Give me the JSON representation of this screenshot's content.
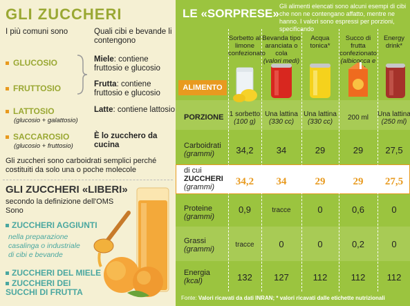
{
  "left": {
    "title": "GLI ZUCCHERI",
    "col1": "I più comuni sono",
    "col2": "Quali cibi e bevande li contengono",
    "sugars": [
      {
        "name": "GLUCOSIO",
        "sub": ""
      },
      {
        "name": "FRUTTOSIO",
        "sub": ""
      },
      {
        "name": "LATTOSIO",
        "sub": "(glucosio + galattosio)"
      },
      {
        "name": "SACCAROSIO",
        "sub": "(glucosio + fruttosio)"
      }
    ],
    "desc": [
      {
        "bold": "Miele",
        "text": ": contiene fruttosio e glucosio"
      },
      {
        "bold": "Frutta",
        "text": ": contiene fruttosio e glucosio"
      },
      {
        "bold": "Latte",
        "text": ": contiene lattosio"
      },
      {
        "bold": "È lo zucchero da cucina",
        "text": ""
      }
    ],
    "note": "Gli zuccheri sono carboidrati semplici perché costituiti da solo una o poche molecole",
    "title2": "GLI ZUCCHERI «LIBERI»",
    "title2_sub": "secondo la definizione dell'OMS",
    "sono": "Sono",
    "free": [
      "ZUCCHERI AGGIUNTI",
      "ZUCCHERI DEL MIELE",
      "ZUCCHERI DEI SUCCHI DI FRUTTA"
    ],
    "free_sub": "nella preparazione casalinga o industriale di cibi e bevande"
  },
  "right": {
    "title": "LE «SORPRESE»",
    "intro": "Gli alimenti elencati sono alcuni esempi di cibi che non ne contengano affatto, mentre ne hanno. I valori sono espressi per porzioni, specificando",
    "alimento": "ALIMENTO",
    "products": [
      {
        "name": "Sorbetto al limone confezionato",
        "note": "",
        "portion": "1 sorbetto",
        "unit": "(100 g)",
        "carbo": "34,2",
        "sugar": "34,2",
        "prot": "0,9",
        "fat": "tracce",
        "energy": "132"
      },
      {
        "name": "Bevanda tipo aranciata o cola",
        "note": "(valori medi)",
        "portion": "Una lattina",
        "unit": "(330 cc)",
        "carbo": "34",
        "sugar": "34",
        "prot": "tracce",
        "fat": "0",
        "energy": "127"
      },
      {
        "name": "Acqua tonica*",
        "note": "",
        "portion": "Una lattina",
        "unit": "(330 cc)",
        "carbo": "29",
        "sugar": "29",
        "prot": "0",
        "fat": "0",
        "energy": "112"
      },
      {
        "name": "Succo di frutta confezionato",
        "note": "(albicocca e pera)",
        "portion": "200 ml",
        "unit": "",
        "carbo": "29",
        "sugar": "29",
        "prot": "0,6",
        "fat": "0,2",
        "energy": "112"
      },
      {
        "name": "Energy drink*",
        "note": "",
        "portion": "Una lattina",
        "unit": "(250 ml)",
        "carbo": "27,5",
        "sugar": "27,5",
        "prot": "0",
        "fat": "0",
        "energy": "112"
      }
    ],
    "rows": {
      "porzione": "PORZIONE",
      "carbo": "Carboidrati",
      "carbo_unit": "(grammi)",
      "sugar_pre": "di cui",
      "sugar": "ZUCCHERI",
      "sugar_unit": "(grammi)",
      "prot": "Proteine",
      "prot_unit": "(grammi)",
      "fat": "Grassi",
      "fat_unit": "(grammi)",
      "energy": "Energia",
      "energy_unit": "(kcal)"
    },
    "footer_label": "Fonte:",
    "footer": "Valori ricavati da dati INRAN; * valori ricavati dalle etichette nutrizionali"
  },
  "colors": {
    "green": "#9bc43f",
    "olive": "#9aa833",
    "orange": "#e89a1f",
    "teal": "#4aa7a0",
    "cream": "#f5f0d3"
  }
}
